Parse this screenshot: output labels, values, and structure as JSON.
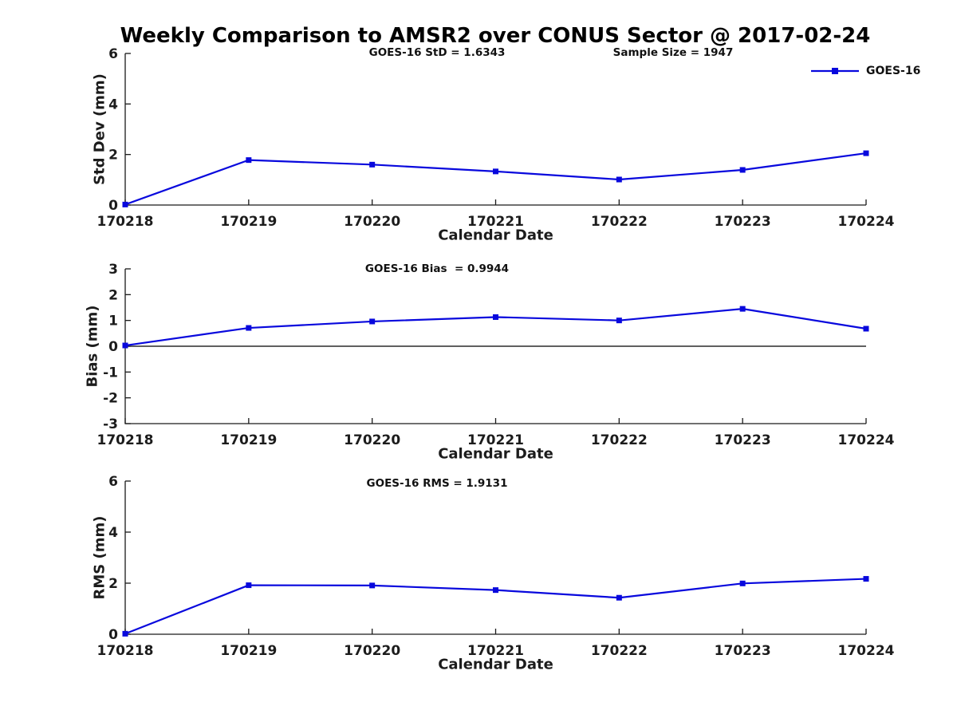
{
  "title": "Weekly Comparison to AMSR2 over CONUS Sector @ 2017-02-24",
  "legend": {
    "label": "GOES-16"
  },
  "colors": {
    "series": "#0808dd",
    "axis": "#1a1a1a",
    "text": "#1c1c1c",
    "zero_line": "#000000",
    "background": "#ffffff"
  },
  "chart_data": [
    {
      "type": "line",
      "name": "std-dev",
      "ylabel": "Std Dev (mm)",
      "xlabel": "Calendar Date",
      "annotation_left": "GOES-16 StD = 1.6343",
      "annotation_right": "Sample Size = 1947",
      "categories": [
        "170218",
        "170219",
        "170220",
        "170221",
        "170222",
        "170223",
        "170224"
      ],
      "series": [
        {
          "name": "GOES-16",
          "values": [
            0.02,
            1.78,
            1.6,
            1.33,
            1.01,
            1.39,
            2.05
          ]
        }
      ],
      "ylim": [
        0,
        6
      ],
      "yticks": [
        0,
        2,
        4,
        6
      ],
      "grid": false,
      "zero_line": false,
      "legend_visible": true,
      "legend_position": "top-right-no-box"
    },
    {
      "type": "line",
      "name": "bias",
      "ylabel": "Bias (mm)",
      "xlabel": "Calendar Date",
      "annotation_left": "GOES-16 Bias  = 0.9944",
      "annotation_right": "",
      "categories": [
        "170218",
        "170219",
        "170220",
        "170221",
        "170222",
        "170223",
        "170224"
      ],
      "series": [
        {
          "name": "GOES-16",
          "values": [
            0.03,
            0.71,
            0.96,
            1.13,
            1.0,
            1.45,
            0.68
          ]
        }
      ],
      "ylim": [
        -3,
        3
      ],
      "yticks": [
        3,
        2,
        1,
        0,
        -1,
        -2,
        -3
      ],
      "grid": false,
      "zero_line": true,
      "legend_visible": false
    },
    {
      "type": "line",
      "name": "rms",
      "ylabel": "RMS (mm)",
      "xlabel": "Calendar Date",
      "annotation_left": "GOES-16 RMS = 1.9131",
      "annotation_right": "",
      "categories": [
        "170218",
        "170219",
        "170220",
        "170221",
        "170222",
        "170223",
        "170224"
      ],
      "series": [
        {
          "name": "GOES-16",
          "values": [
            0.02,
            1.92,
            1.91,
            1.73,
            1.43,
            1.99,
            2.17
          ]
        }
      ],
      "ylim": [
        0,
        6
      ],
      "yticks": [
        0,
        2,
        4,
        6
      ],
      "grid": false,
      "zero_line": false,
      "legend_visible": false
    }
  ]
}
